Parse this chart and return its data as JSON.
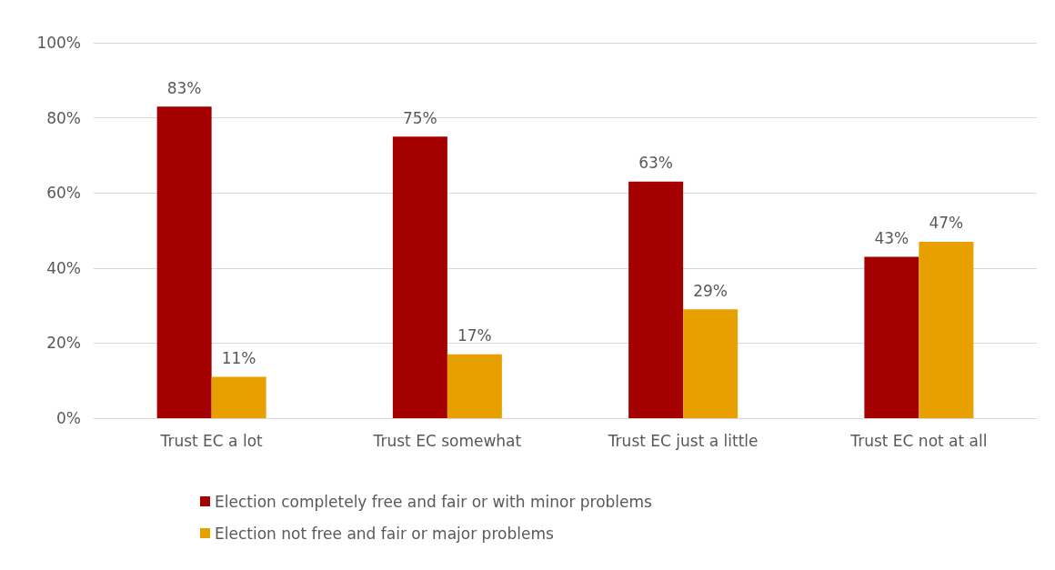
{
  "chart_data": {
    "type": "bar",
    "categories": [
      "Trust EC a lot",
      "Trust EC somewhat",
      "Trust EC just a little",
      "Trust EC not at all"
    ],
    "series": [
      {
        "name": "Election completely free and fair or with minor problems",
        "color": "#a50000",
        "values": [
          83,
          75,
          63,
          43
        ],
        "value_labels": [
          "83%",
          "75%",
          "63%",
          "43%"
        ]
      },
      {
        "name": "Election not free and fair or major problems",
        "color": "#e8a000",
        "values": [
          11,
          17,
          29,
          47
        ],
        "value_labels": [
          "11%",
          "17%",
          "29%",
          "47%"
        ]
      }
    ],
    "ylim": [
      0,
      100
    ],
    "yticks": [
      {
        "value": 0,
        "label": "0%"
      },
      {
        "value": 20,
        "label": "20%"
      },
      {
        "value": 40,
        "label": "40%"
      },
      {
        "value": 60,
        "label": "60%"
      },
      {
        "value": 80,
        "label": "80%"
      },
      {
        "value": 100,
        "label": "100%"
      }
    ],
    "grid": "y",
    "legend": "bottom"
  }
}
